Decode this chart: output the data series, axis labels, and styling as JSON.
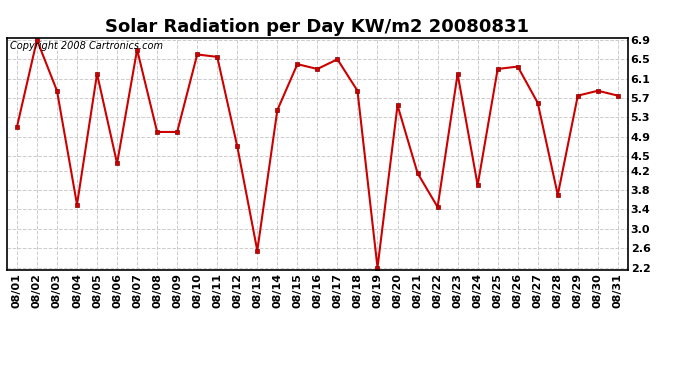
{
  "title": "Solar Radiation per Day KW/m2 20080831",
  "copyright_text": "Copyright 2008 Cartronics.com",
  "dates": [
    "08/01",
    "08/02",
    "08/03",
    "08/04",
    "08/05",
    "08/06",
    "08/07",
    "08/08",
    "08/09",
    "08/10",
    "08/11",
    "08/12",
    "08/13",
    "08/14",
    "08/15",
    "08/16",
    "08/17",
    "08/18",
    "08/19",
    "08/20",
    "08/21",
    "08/22",
    "08/23",
    "08/24",
    "08/25",
    "08/26",
    "08/27",
    "08/28",
    "08/29",
    "08/30",
    "08/31"
  ],
  "values": [
    5.1,
    6.9,
    5.85,
    3.5,
    6.2,
    4.35,
    6.7,
    5.0,
    5.0,
    6.6,
    6.55,
    4.7,
    2.55,
    5.45,
    6.4,
    6.3,
    6.5,
    5.85,
    2.2,
    5.55,
    4.15,
    3.45,
    6.2,
    3.9,
    6.3,
    6.35,
    5.6,
    3.7,
    5.75,
    5.85,
    5.75
  ],
  "line_color": "#cc0000",
  "marker": "s",
  "marker_size": 3,
  "line_width": 1.5,
  "yticks": [
    2.2,
    2.6,
    3.0,
    3.4,
    3.8,
    4.2,
    4.5,
    4.9,
    5.3,
    5.7,
    6.1,
    6.5,
    6.9
  ],
  "ylim_min": 2.2,
  "ylim_max": 6.9,
  "bg_color": "#ffffff",
  "grid_color": "#cccccc",
  "title_fontsize": 13,
  "label_fontsize": 8,
  "copyright_fontsize": 7
}
